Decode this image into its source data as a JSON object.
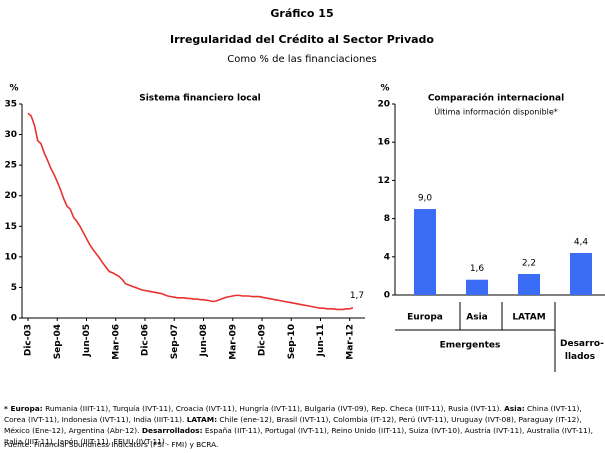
{
  "header": {
    "label": "Gráfico 15",
    "title": "Irregularidad del Crédito al Sector Privado",
    "subtitle": "Como % de las financiaciones"
  },
  "chart_data": [
    {
      "type": "line",
      "title": "Sistema financiero local",
      "y_label": "%",
      "categories": [
        "Dic-03",
        null,
        null,
        null,
        null,
        null,
        null,
        null,
        null,
        "Sep-04",
        null,
        null,
        null,
        null,
        null,
        null,
        null,
        null,
        "Jun-05",
        null,
        null,
        null,
        null,
        null,
        null,
        null,
        null,
        "Mar-06",
        null,
        null,
        null,
        null,
        null,
        null,
        null,
        null,
        "Dic-06",
        null,
        null,
        null,
        null,
        null,
        null,
        null,
        null,
        "Sep-07",
        null,
        null,
        null,
        null,
        null,
        null,
        null,
        null,
        "Jun-08",
        null,
        null,
        null,
        null,
        null,
        null,
        null,
        null,
        "Mar-09",
        null,
        null,
        null,
        null,
        null,
        null,
        null,
        null,
        "Dic-09",
        null,
        null,
        null,
        null,
        null,
        null,
        null,
        null,
        "Sep-10",
        null,
        null,
        null,
        null,
        null,
        null,
        null,
        null,
        "Jun-11",
        null,
        null,
        null,
        null,
        null,
        null,
        null,
        null,
        "Mar-12",
        null
      ],
      "series": [
        {
          "name": "Sistema financiero local",
          "color": "#e8322f",
          "values": [
            33.5,
            33.0,
            31.5,
            29.0,
            28.5,
            27.0,
            25.8,
            24.5,
            23.5,
            22.3,
            21.0,
            19.5,
            18.3,
            17.8,
            16.5,
            15.8,
            15.0,
            14.0,
            13.0,
            12.0,
            11.2,
            10.5,
            9.8,
            9.0,
            8.3,
            7.6,
            7.4,
            7.1,
            6.8,
            6.3,
            5.6,
            5.4,
            5.2,
            5.0,
            4.8,
            4.6,
            4.5,
            4.4,
            4.3,
            4.2,
            4.1,
            4.0,
            3.8,
            3.6,
            3.5,
            3.4,
            3.3,
            3.3,
            3.3,
            3.2,
            3.2,
            3.1,
            3.1,
            3.0,
            3.0,
            2.9,
            2.8,
            2.7,
            2.8,
            3.0,
            3.2,
            3.4,
            3.5,
            3.6,
            3.7,
            3.7,
            3.6,
            3.6,
            3.6,
            3.5,
            3.5,
            3.5,
            3.4,
            3.3,
            3.2,
            3.1,
            3.0,
            2.9,
            2.8,
            2.7,
            2.6,
            2.5,
            2.4,
            2.3,
            2.2,
            2.1,
            2.0,
            1.9,
            1.8,
            1.7,
            1.6,
            1.6,
            1.5,
            1.5,
            1.5,
            1.4,
            1.4,
            1.4,
            1.5,
            1.5,
            1.7
          ],
          "value_labels": [
            null,
            null,
            null,
            null,
            null,
            null,
            null,
            null,
            null,
            null,
            null,
            null,
            null,
            null,
            null,
            null,
            null,
            null,
            null,
            null,
            null,
            null,
            null,
            null,
            null,
            null,
            null,
            null,
            null,
            null,
            null,
            null,
            null,
            null,
            null,
            null,
            null,
            null,
            null,
            null,
            null,
            null,
            null,
            null,
            null,
            null,
            null,
            null,
            null,
            null,
            null,
            null,
            null,
            null,
            null,
            null,
            null,
            null,
            null,
            null,
            null,
            null,
            null,
            null,
            null,
            null,
            null,
            null,
            null,
            null,
            null,
            null,
            null,
            null,
            null,
            null,
            null,
            null,
            null,
            null,
            null,
            null,
            null,
            null,
            null,
            null,
            null,
            null,
            null,
            null,
            null,
            null,
            null,
            null,
            null,
            null,
            null,
            null,
            null,
            null,
            "1,7"
          ]
        }
      ],
      "ylim": [
        0,
        35
      ],
      "yticks": [
        0,
        5,
        10,
        15,
        20,
        25,
        30,
        35
      ]
    },
    {
      "type": "bar",
      "title": "Comparación internacional",
      "subtitle": "Última información disponible*",
      "y_label": "%",
      "categories": [
        "Europa",
        "Asia",
        "LATAM",
        null
      ],
      "groups": [
        "Emergentes",
        "Emergentes",
        "Emergentes",
        "Desarro-llados"
      ],
      "values": [
        9.0,
        1.6,
        2.2,
        4.4
      ],
      "value_labels": [
        "9,0",
        "1,6",
        "2,2",
        "4,4"
      ],
      "color": "#3b6cf5",
      "ylim": [
        0,
        20
      ],
      "yticks": [
        0,
        4,
        8,
        12,
        16,
        20
      ]
    }
  ],
  "notes": [
    {
      "bold": "* Europa:",
      "text": " Rumania (IIIT-11), Turquía (IVT-11), Croacia (IVT-11), Hungría (IVT-11), Bulgaria (IVT-09), Rep. Checa (IIIT-11), Rusia (IVT-11). "
    },
    {
      "bold": "Asia:",
      "text": " China (IVT-11), Corea (IVT-11), Indonesia (IVT-11), India (IIIT-11). "
    },
    {
      "bold": "LATAM:",
      "text": " Chile (ene-12), Brasil (IVT-11), Colombia (IT-12), Perú (IVT-11), Uruguay (IVT-08), Paraguay (IT-12), México (Ene-12), Argentina (Abr-12). "
    },
    {
      "bold": "Desarrollados:",
      "text": " España (IIT-11), Portugal (IVT-11), Reino Unido (IIT-11), Suiza (IVT-10), Austria (IVT-11), Australia (IVT-11), Italia (IIIT-11), Japón (IIIT-11), EEUU (IVT-11)."
    }
  ],
  "source": "Fuente: Financial Soundness Indicators (FSI - FMI) y BCRA."
}
